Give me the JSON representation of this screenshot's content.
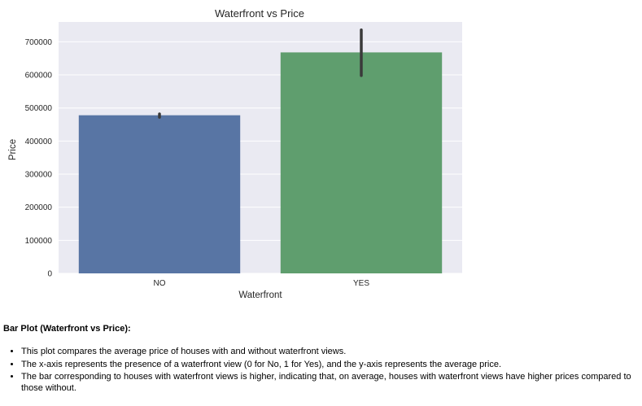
{
  "chart_data": {
    "type": "bar",
    "title": "Waterfront vs Price",
    "xlabel": "Waterfront",
    "ylabel": "Price",
    "categories": [
      "NO",
      "YES"
    ],
    "values": [
      478000,
      668000
    ],
    "error_bars": [
      {
        "low": 472000,
        "high": 482000
      },
      {
        "low": 598000,
        "high": 736000
      }
    ],
    "ylim": [
      0,
      760000
    ],
    "yticks": [
      0,
      100000,
      200000,
      300000,
      400000,
      500000,
      600000,
      700000
    ],
    "grid": true,
    "colors": {
      "background": "#eaeaf2",
      "grid": "#ffffff",
      "bars": [
        "#5875a4",
        "#5f9e6e"
      ],
      "error_bar": "#3a3a3a",
      "text": "#262626"
    }
  },
  "description": {
    "heading": "Bar Plot (Waterfront vs Price):",
    "bullets": [
      "This plot compares the average price of houses with and without waterfront views.",
      "The x-axis represents the presence of a waterfront view (0 for No, 1 for Yes), and the y-axis represents the average price.",
      "The bar corresponding to houses with waterfront views is higher, indicating that, on average, houses with waterfront views have higher prices compared to those without."
    ]
  }
}
